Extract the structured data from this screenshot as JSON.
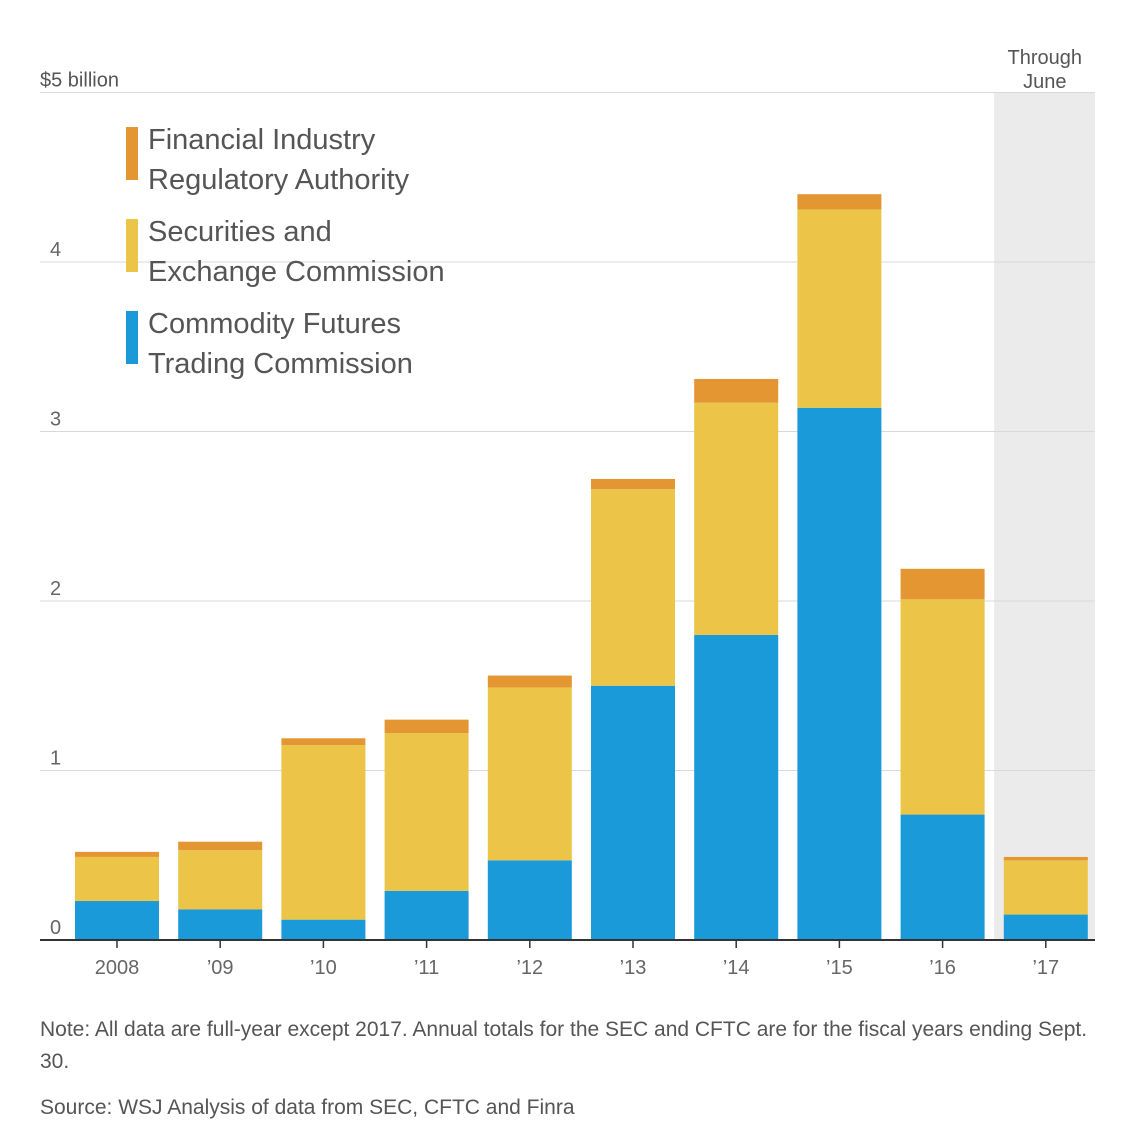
{
  "chart_data": {
    "type": "bar",
    "stacked": true,
    "y_unit_label": "$5 billion",
    "ylim": [
      0,
      5
    ],
    "y_ticks": [
      {
        "value": 0,
        "label": "0"
      },
      {
        "value": 1,
        "label": "1"
      },
      {
        "value": 2,
        "label": "2"
      },
      {
        "value": 3,
        "label": "3"
      },
      {
        "value": 4,
        "label": "4"
      }
    ],
    "grid": true,
    "categories": [
      "2008",
      "’09",
      "’10",
      "’11",
      "’12",
      "’13",
      "’14",
      "’15",
      "’16",
      "’17"
    ],
    "highlight": {
      "category": "’17",
      "label_lines": [
        "Through",
        "June"
      ]
    },
    "series": [
      {
        "name": "Commodity Futures Trading Commission",
        "legend_lines": [
          "Commodity Futures",
          "Trading Commission"
        ],
        "color": "#1a9ad9",
        "values": [
          0.23,
          0.18,
          0.12,
          0.29,
          0.47,
          1.5,
          1.8,
          3.14,
          0.74,
          0.15
        ]
      },
      {
        "name": "Securities and Exchange Commission",
        "legend_lines": [
          "Securities and",
          "Exchange Commission"
        ],
        "color": "#ebc448",
        "values": [
          0.26,
          0.35,
          1.03,
          0.93,
          1.02,
          1.16,
          1.37,
          1.17,
          1.27,
          0.32
        ]
      },
      {
        "name": "Financial Industry Regulatory Authority",
        "legend_lines": [
          "Financial Industry",
          "Regulatory Authority"
        ],
        "color": "#e39632",
        "values": [
          0.03,
          0.05,
          0.04,
          0.08,
          0.07,
          0.06,
          0.14,
          0.09,
          0.18,
          0.02
        ]
      }
    ],
    "legend_position": "top-left"
  },
  "notes": {
    "note": "Note: All data are full-year except 2017. Annual totals for the SEC and CFTC are for the fiscal years ending Sept. 30.",
    "source": "Source: WSJ Analysis of data from SEC, CFTC and Finra"
  }
}
